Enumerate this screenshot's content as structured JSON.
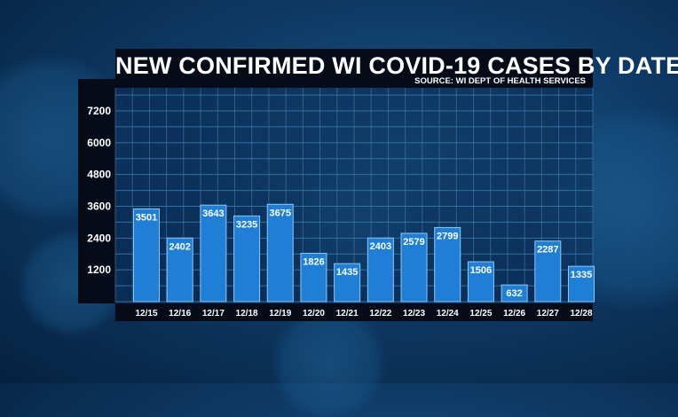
{
  "chart_data": {
    "type": "bar",
    "title": "NEW CONFIRMED WI COVID-19 CASES BY DATE",
    "source": "SOURCE: WI DEPT OF HEALTH SERVICES",
    "categories": [
      "12/15",
      "12/16",
      "12/17",
      "12/18",
      "12/19",
      "12/20",
      "12/21",
      "12/22",
      "12/23",
      "12/24",
      "12/25",
      "12/26",
      "12/27",
      "12/28"
    ],
    "values": [
      3501,
      2402,
      3643,
      3235,
      3675,
      1826,
      1435,
      2403,
      2579,
      2799,
      1506,
      632,
      2287,
      1335
    ],
    "yticks": [
      1200,
      2400,
      3600,
      4800,
      6000,
      7200
    ],
    "ylim": [
      0,
      8400
    ],
    "grid": true,
    "colors": {
      "bar": "#1f7fd6",
      "bar_border": "#8fc6f2",
      "grid": "#3d7fb0"
    }
  }
}
